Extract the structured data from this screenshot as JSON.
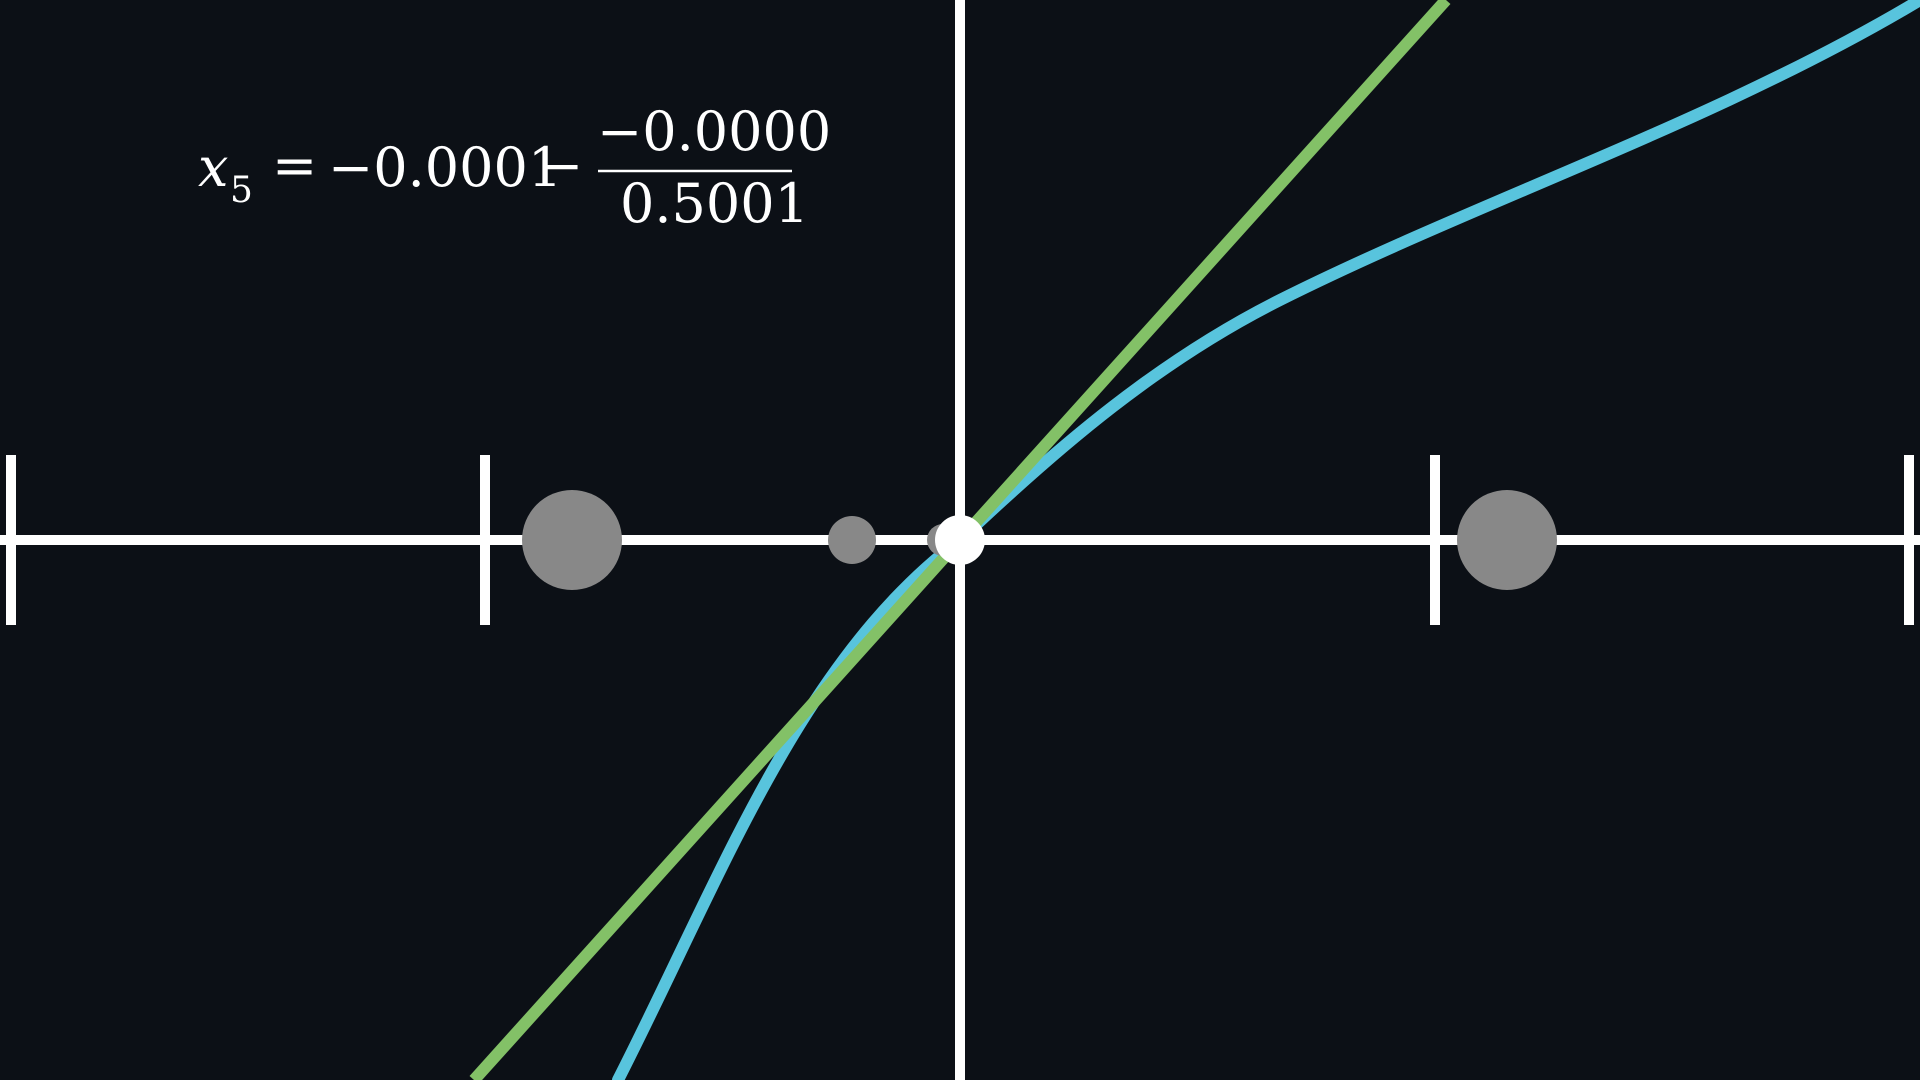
{
  "equation": {
    "lhs_symbol": "x",
    "lhs_subscript": "5",
    "equals": "=",
    "current_value": "−0.0001",
    "minus": "−",
    "numerator": "−0.0000",
    "denominator": "0.5001"
  },
  "colors": {
    "background": "#0c1016",
    "axis": "#ffffff",
    "curve": "#58c4dd",
    "tangent_line": "#83c167",
    "previous_guess_dot": "#888888",
    "current_guess_dot": "#ffffff"
  },
  "icons": {
    "current_guess": "filled-circle",
    "previous_guesses": "filled-circle"
  }
}
